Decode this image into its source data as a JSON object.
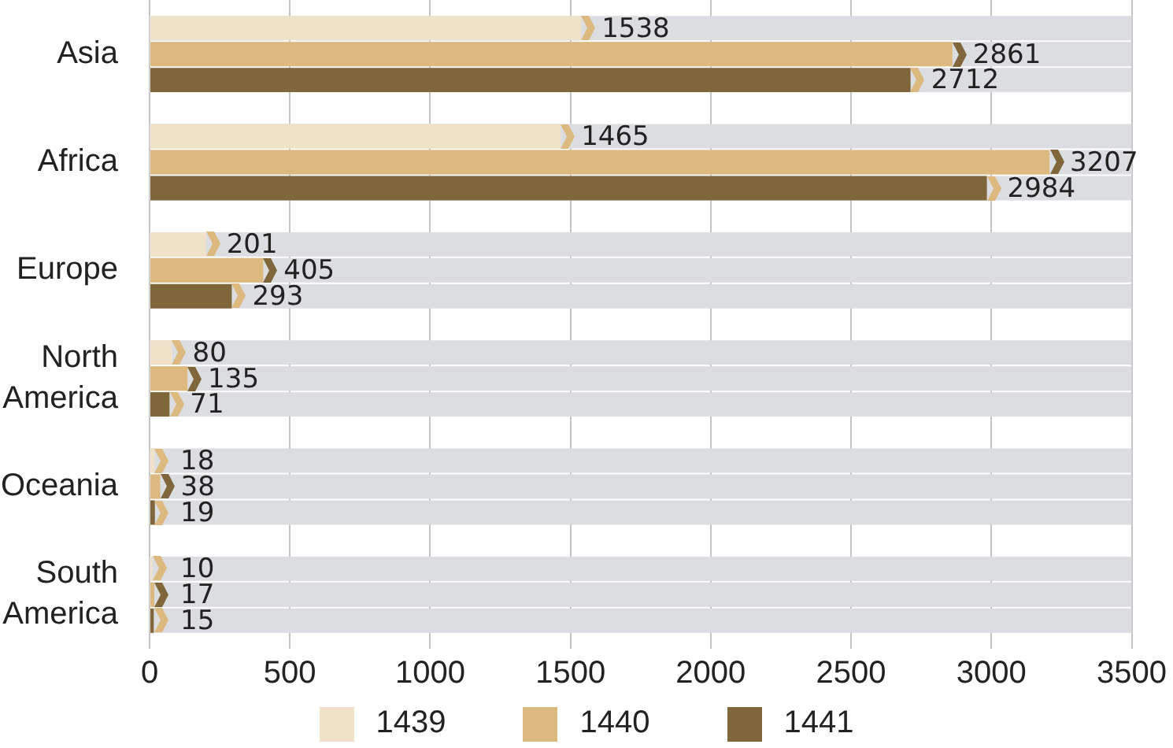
{
  "chart_data": {
    "type": "bar",
    "orientation": "horizontal",
    "categories": [
      "Asia",
      "Africa",
      "Europe",
      "North America",
      "Oceania",
      "South America"
    ],
    "series": [
      {
        "name": "1439",
        "color": "#f0e2c8",
        "values": [
          1538,
          1465,
          201,
          80,
          18,
          10
        ]
      },
      {
        "name": "1440",
        "color": "#dcb97e",
        "values": [
          2861,
          3207,
          405,
          135,
          38,
          17
        ]
      },
      {
        "name": "1441",
        "color": "#7f673b",
        "values": [
          2712,
          2984,
          293,
          71,
          19,
          15
        ]
      }
    ],
    "xlim": [
      0,
      3500
    ],
    "xticks": [
      0,
      500,
      1000,
      1500,
      2000,
      2500,
      3000,
      3500
    ],
    "grid": "x",
    "legend": "bottom",
    "data_labels": true
  }
}
